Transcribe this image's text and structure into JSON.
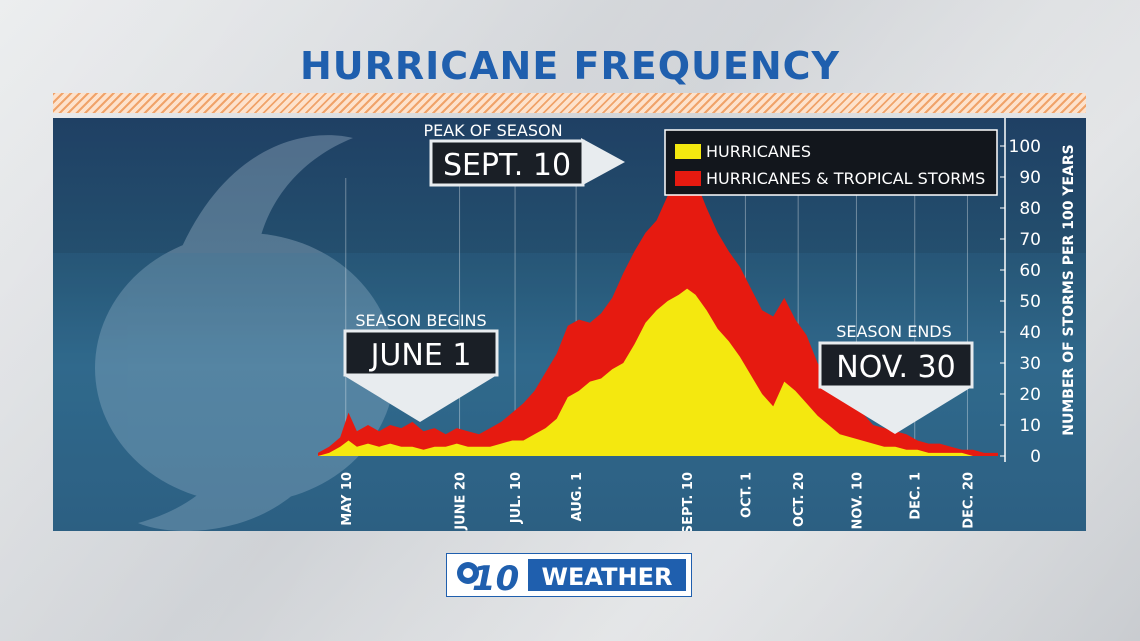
{
  "title": "HURRICANE FREQUENCY",
  "annotations": {
    "peak_label": "PEAK OF SEASON",
    "peak_date": "SEPT. 10",
    "begin_label": "SEASON BEGINS",
    "begin_date": "JUNE 1",
    "end_label": "SEASON ENDS",
    "end_date": "NOV. 30"
  },
  "logo": {
    "number": "10",
    "text": "WEATHER"
  },
  "colors": {
    "hurricanes": "#f4e80f",
    "tropical": "#e61a10",
    "title": "#1f5fae"
  },
  "chart_data": {
    "type": "area",
    "title": "HURRICANE FREQUENCY",
    "xlabel": "",
    "ylabel": "NUMBER OF STORMS PER 100 YEARS",
    "ylim": [
      0,
      100
    ],
    "yticks": [
      0,
      10,
      20,
      30,
      40,
      50,
      60,
      70,
      80,
      90,
      100
    ],
    "xticks": [
      "MAY 10",
      "JUNE 20",
      "JUL. 10",
      "AUG. 1",
      "SEPT. 10",
      "OCT. 1",
      "OCT. 20",
      "NOV. 10",
      "DEC. 1",
      "DEC. 20"
    ],
    "xtick_days": [
      130,
      171,
      191,
      213,
      253,
      274,
      293,
      314,
      335,
      354
    ],
    "x_range_days": [
      120,
      365
    ],
    "legend": "top-right",
    "series": [
      {
        "name": "HURRICANES & TROPICAL STORMS",
        "color": "#e61a10",
        "days": [
          120,
          124,
          128,
          131,
          134,
          138,
          142,
          146,
          150,
          154,
          158,
          162,
          166,
          170,
          174,
          178,
          182,
          186,
          190,
          194,
          198,
          202,
          206,
          210,
          214,
          218,
          222,
          226,
          230,
          234,
          238,
          242,
          246,
          250,
          253,
          256,
          260,
          264,
          268,
          272,
          276,
          280,
          284,
          288,
          292,
          296,
          300,
          304,
          308,
          312,
          316,
          320,
          324,
          328,
          332,
          336,
          340,
          344,
          348,
          352,
          356,
          360,
          365
        ],
        "values": [
          1,
          3,
          6,
          14,
          8,
          10,
          8,
          10,
          9,
          11,
          8,
          9,
          7,
          9,
          8,
          7,
          9,
          11,
          14,
          17,
          21,
          27,
          33,
          42,
          44,
          43,
          46,
          51,
          59,
          66,
          72,
          76,
          84,
          91,
          95,
          89,
          80,
          72,
          66,
          61,
          54,
          47,
          45,
          51,
          44,
          39,
          30,
          24,
          18,
          20,
          14,
          10,
          9,
          8,
          7,
          5,
          4,
          4,
          3,
          2,
          2,
          1,
          1
        ]
      },
      {
        "name": "HURRICANES",
        "color": "#f4e80f",
        "days": [
          120,
          124,
          128,
          131,
          134,
          138,
          142,
          146,
          150,
          154,
          158,
          162,
          166,
          170,
          174,
          178,
          182,
          186,
          190,
          194,
          198,
          202,
          206,
          210,
          214,
          218,
          222,
          226,
          230,
          234,
          238,
          242,
          246,
          250,
          253,
          256,
          260,
          264,
          268,
          272,
          276,
          280,
          284,
          288,
          292,
          296,
          300,
          304,
          308,
          312,
          316,
          320,
          324,
          328,
          332,
          336,
          340,
          344,
          348,
          352,
          356,
          360,
          365
        ],
        "values": [
          0,
          1,
          3,
          5,
          3,
          4,
          3,
          4,
          3,
          3,
          2,
          3,
          3,
          4,
          3,
          3,
          3,
          4,
          5,
          5,
          7,
          9,
          12,
          19,
          21,
          24,
          25,
          28,
          30,
          36,
          43,
          47,
          50,
          52,
          54,
          52,
          47,
          41,
          37,
          32,
          26,
          20,
          16,
          24,
          21,
          17,
          13,
          10,
          7,
          6,
          5,
          4,
          3,
          3,
          2,
          2,
          1,
          1,
          1,
          1,
          0,
          0,
          0
        ]
      }
    ]
  }
}
